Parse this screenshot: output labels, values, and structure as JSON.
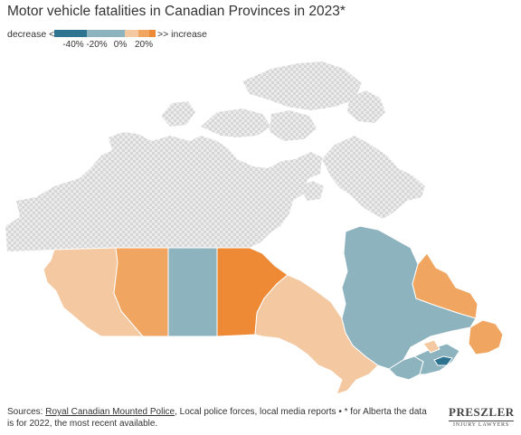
{
  "title": "Motor vehicle fatalities in Canadian Provinces in 2023*",
  "legend": {
    "left_label": "decrease <<",
    "right_label": ">> increase",
    "segments": [
      {
        "color": "#2e7390"
      },
      {
        "color": "#8db3bf"
      },
      {
        "color": "#f4c9a2"
      },
      {
        "color": "#f0a560"
      },
      {
        "color": "#ee8a36"
      }
    ],
    "ticks": [
      "-40%",
      "-20%",
      "0%",
      "20%"
    ]
  },
  "colors": {
    "no_data_pattern": "#d9d9d9",
    "strong_decrease": "#2e7390",
    "decrease": "#8db3bf",
    "slight_increase": "#f4c9a2",
    "increase": "#f0a560",
    "strong_increase": "#ee8a36"
  },
  "regions": [
    {
      "name": "British Columbia",
      "color": "#f4c9a2"
    },
    {
      "name": "Alberta",
      "color": "#f0a560"
    },
    {
      "name": "Saskatchewan",
      "color": "#8db3bf"
    },
    {
      "name": "Manitoba",
      "color": "#ee8a36"
    },
    {
      "name": "Ontario",
      "color": "#f4c9a2"
    },
    {
      "name": "Quebec",
      "color": "#8db3bf"
    },
    {
      "name": "Newfoundland and Labrador",
      "color": "#f0a560"
    },
    {
      "name": "New Brunswick",
      "color": "#8db3bf"
    },
    {
      "name": "Nova Scotia",
      "color": "#8db3bf"
    },
    {
      "name": "Prince Edward Island",
      "color": "#2e7390"
    },
    {
      "name": "Territories",
      "color": "no-data"
    }
  ],
  "footer": {
    "sources_prefix": "Sources: ",
    "rcmp_link": "Royal Canadian Mounted Police",
    "sources_rest": ", Local police forces, local media reports • * for Alberta the data is for 2022, the most recent available."
  },
  "logo": {
    "main": "PRESZLER",
    "sub": "INJURY LAWYERS"
  }
}
